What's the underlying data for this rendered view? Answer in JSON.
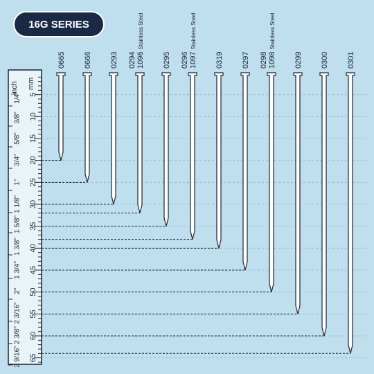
{
  "header": {
    "title": "16G SERIES"
  },
  "ruler": {
    "mm_unit": "mm",
    "inch_unit": "inch",
    "mm_labels": [
      5,
      10,
      15,
      20,
      25,
      30,
      35,
      40,
      45,
      50,
      55,
      60,
      65
    ],
    "inch_labels": [
      "1/4\"",
      "3/8\"",
      "5/8\"",
      "3/4\"",
      "1\"",
      "1 1/8\"",
      "1 5/8\"",
      "1 3/8\"",
      "1 3/4\"",
      "2\"",
      "2 3/16\"",
      "2 3/8\"",
      "2 9/16\""
    ]
  },
  "nails": [
    {
      "code": "0665",
      "length": 20
    },
    {
      "code": "0666",
      "length": 25
    },
    {
      "code": "0293",
      "length": 30
    },
    {
      "code": "0294",
      "alt": "1096",
      "material": "Stainless Steel",
      "length": 32
    },
    {
      "code": "0295",
      "length": 35
    },
    {
      "code": "0296",
      "alt": "1097",
      "material": "Stainless Steel",
      "length": 38
    },
    {
      "code": "0319",
      "length": 40
    },
    {
      "code": "0297",
      "length": 45
    },
    {
      "code": "0298",
      "alt": "1098",
      "material": "Stainless Steel",
      "length": 50
    },
    {
      "code": "0299",
      "length": 55
    },
    {
      "code": "0300",
      "length": 60
    },
    {
      "code": "0301",
      "length": 64
    }
  ]
}
